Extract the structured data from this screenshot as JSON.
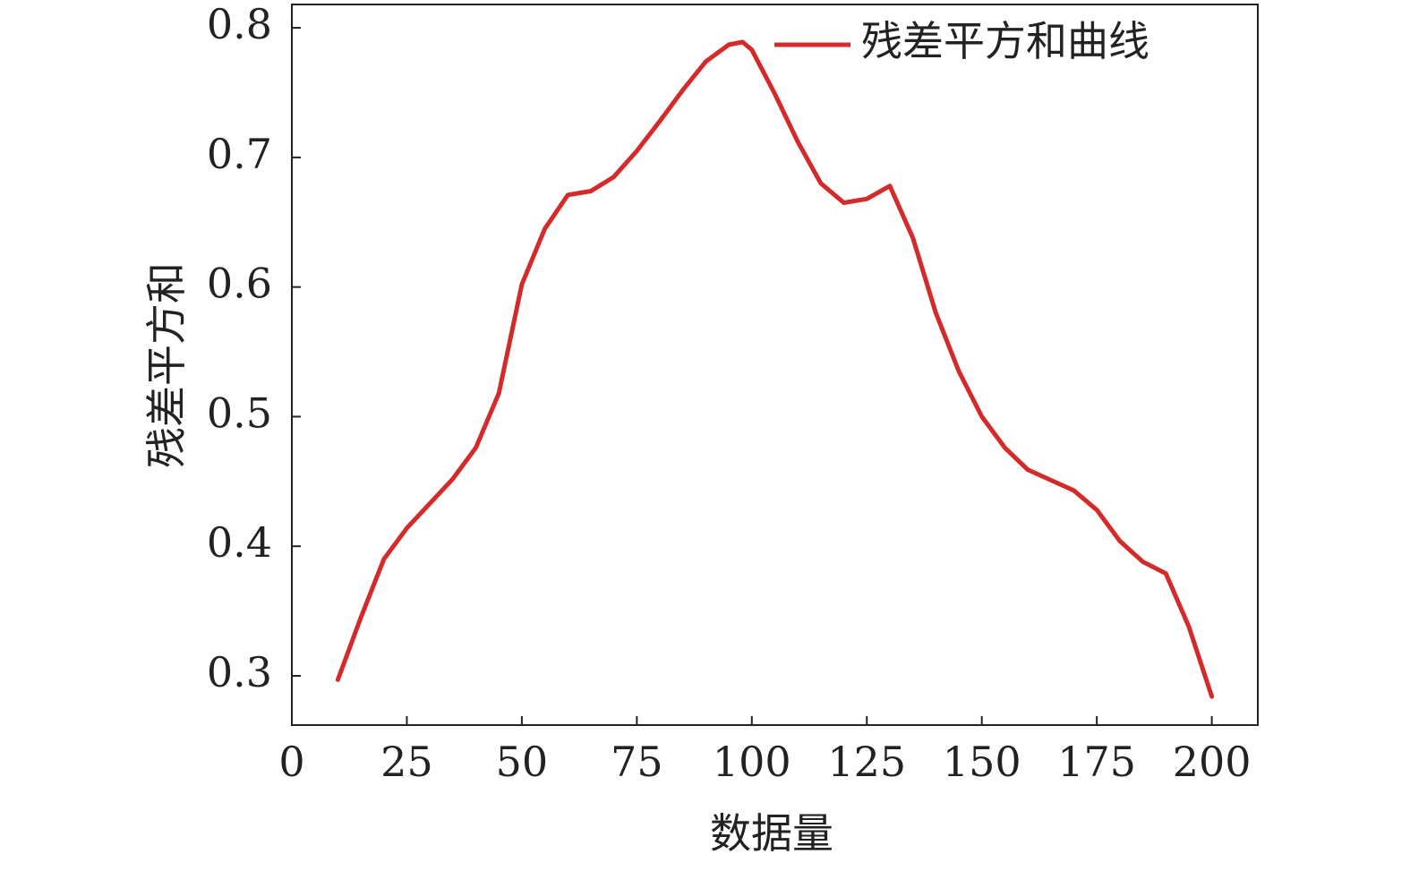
{
  "chart_data": {
    "type": "line",
    "xlabel": "数据量",
    "ylabel": "残差平方和",
    "x": [
      10,
      15,
      20,
      25,
      30,
      35,
      40,
      45,
      50,
      55,
      60,
      65,
      70,
      75,
      80,
      85,
      90,
      95,
      98,
      100,
      105,
      110,
      115,
      120,
      125,
      130,
      135,
      140,
      145,
      150,
      155,
      160,
      165,
      170,
      175,
      180,
      185,
      190,
      195,
      200
    ],
    "series": [
      {
        "name": "残差平方和曲线",
        "color": "#d42a2a",
        "values": [
          0.297,
          0.345,
          0.39,
          0.414,
          0.433,
          0.452,
          0.476,
          0.518,
          0.602,
          0.645,
          0.671,
          0.674,
          0.685,
          0.705,
          0.728,
          0.752,
          0.774,
          0.787,
          0.789,
          0.783,
          0.749,
          0.712,
          0.68,
          0.665,
          0.668,
          0.678,
          0.638,
          0.58,
          0.535,
          0.5,
          0.476,
          0.459,
          0.451,
          0.443,
          0.428,
          0.404,
          0.388,
          0.379,
          0.338,
          0.284
        ]
      }
    ],
    "xlim": [
      0,
      210
    ],
    "xticks": [
      0,
      25,
      50,
      75,
      100,
      125,
      150,
      175,
      200
    ],
    "ylim": [
      0.262,
      0.818
    ],
    "yticks": [
      0.3,
      0.4,
      0.5,
      0.6,
      0.7,
      0.8
    ],
    "legend": "upper right",
    "grid": false
  }
}
